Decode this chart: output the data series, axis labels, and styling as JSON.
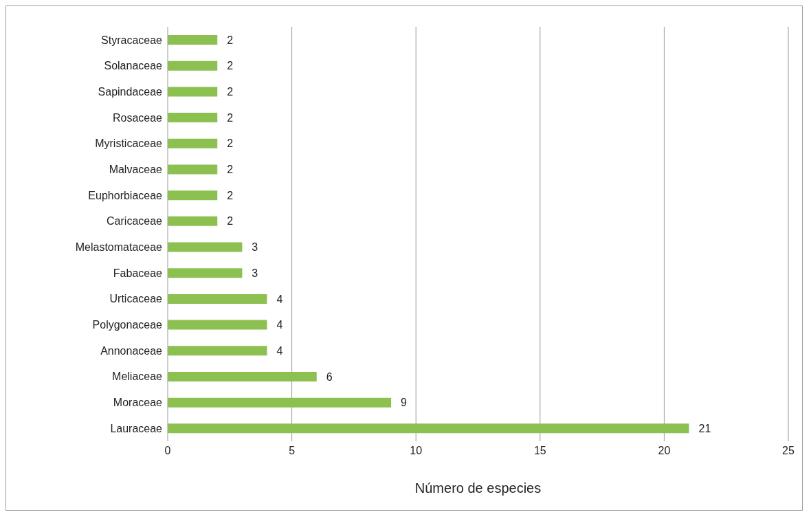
{
  "chart_data": {
    "type": "bar",
    "orientation": "horizontal",
    "xlabel": "Número de especies",
    "categories": [
      "Styracaceae",
      "Solanaceae",
      "Sapindaceae",
      "Rosaceae",
      "Myristicaceae",
      "Malvaceae",
      "Euphorbiaceae",
      "Caricaceae",
      "Melastomataceae",
      "Fabaceae",
      "Urticaceae",
      "Polygonaceae",
      "Annonaceae",
      "Meliaceae",
      "Moraceae",
      "Lauraceae"
    ],
    "values": [
      2,
      2,
      2,
      2,
      2,
      2,
      2,
      2,
      3,
      3,
      4,
      4,
      4,
      6,
      9,
      21
    ],
    "color": "#8cc152",
    "xlim": [
      0,
      25
    ],
    "xticks": [
      0,
      5,
      10,
      15,
      20,
      25
    ],
    "grid": "x",
    "data_labels": true
  }
}
